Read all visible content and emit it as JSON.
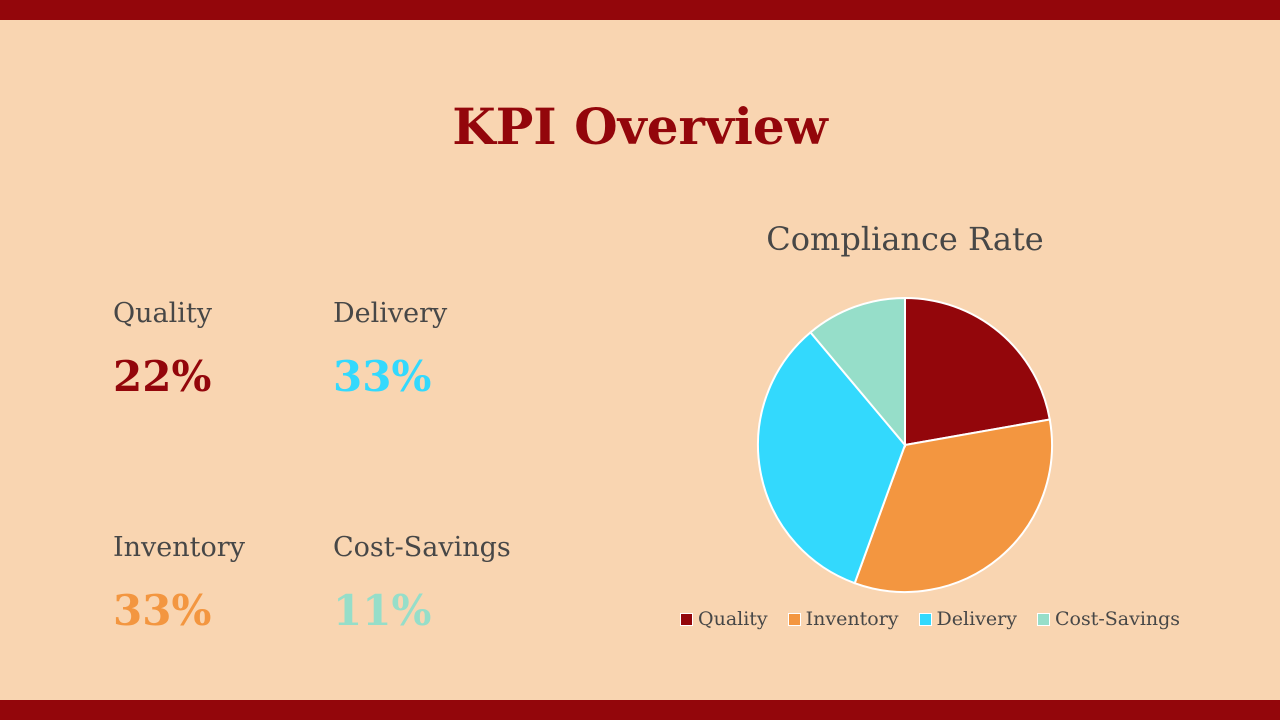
{
  "title": "KPI Overview",
  "colors": {
    "band": "#93060B",
    "background": "#F9D5B1",
    "text": "#474747"
  },
  "kpis": [
    {
      "label": "Quality",
      "value": "22%",
      "color": "#93060B"
    },
    {
      "label": "Delivery",
      "value": "33%",
      "color": "#33D9FD"
    },
    {
      "label": "Inventory",
      "value": "33%",
      "color": "#F39640"
    },
    {
      "label": "Cost-Savings",
      "value": "11%",
      "color": "#96DEC9"
    }
  ],
  "chart_data": {
    "type": "pie",
    "title": "Compliance Rate",
    "categories": [
      "Quality",
      "Inventory",
      "Delivery",
      "Cost-Savings"
    ],
    "values": [
      22,
      33,
      33,
      11
    ],
    "colors": [
      "#93060B",
      "#F39640",
      "#33D9FD",
      "#96DEC9"
    ],
    "legend": "bottom"
  }
}
